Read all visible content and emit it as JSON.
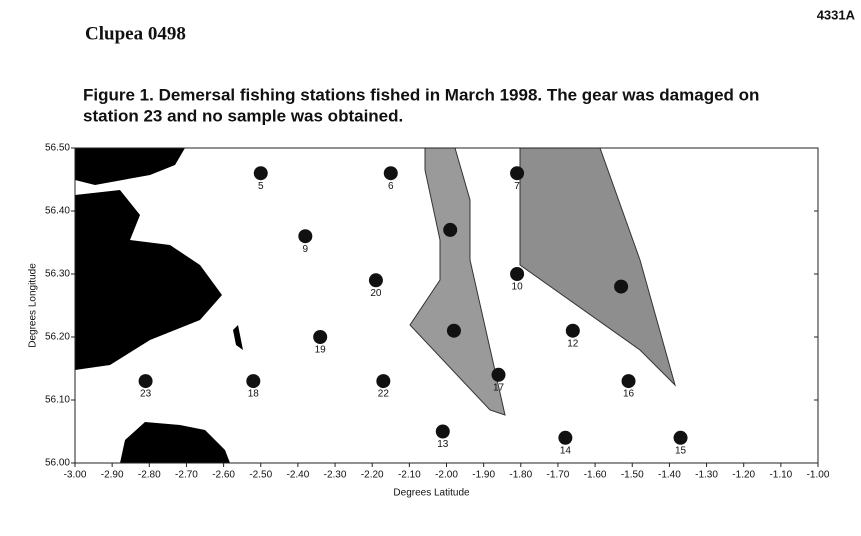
{
  "header": {
    "left": "Clupea 0498",
    "right": "4331A"
  },
  "chart_data": {
    "type": "scatter",
    "title": [
      "Figure 1. Demersal fishing stations fished in March 1998. The gear was damaged on",
      "station 23 and no sample was obtained."
    ],
    "x_label": "Degrees Latitude",
    "y_label": "Degrees Longitude",
    "x": [
      -2.5,
      -2.15,
      -1.81,
      -2.38,
      -1.99,
      -2.19,
      -1.81,
      -1.53,
      -2.34,
      -1.98,
      -1.66,
      -2.81,
      -2.52,
      -2.17,
      -1.86,
      -1.51,
      -2.01,
      -1.68,
      -1.37
    ],
    "values": [
      56.46,
      56.46,
      56.46,
      56.36,
      56.37,
      56.29,
      56.3,
      56.28,
      56.2,
      56.21,
      56.21,
      56.13,
      56.13,
      56.13,
      56.14,
      56.13,
      56.05,
      56.04,
      56.04
    ],
    "labels": [
      "5",
      "6",
      "7",
      "9",
      null,
      "20",
      "10",
      null,
      "19",
      null,
      "12",
      "23",
      "18",
      "22",
      "17",
      "16",
      "13",
      "14",
      "15"
    ],
    "color": "#111111",
    "xlim": [
      -3,
      -1
    ],
    "xticks": [
      {
        "value": -3,
        "label": "-3.00"
      },
      {
        "value": -2.9,
        "label": "-2.90"
      },
      {
        "value": -2.8,
        "label": "-2.80"
      },
      {
        "value": -2.7,
        "label": "-2.70"
      },
      {
        "value": -2.6,
        "label": "-2.60"
      },
      {
        "value": -2.5,
        "label": "-2.50"
      },
      {
        "value": -2.4,
        "label": "-2.40"
      },
      {
        "value": -2.3,
        "label": "-2.30"
      },
      {
        "value": -2.2,
        "label": "-2.20"
      },
      {
        "value": -2.1,
        "label": "-2.10"
      },
      {
        "value": -2,
        "label": "-2.00"
      },
      {
        "value": -1.9,
        "label": "-1.90"
      },
      {
        "value": -1.8,
        "label": "-1.80"
      },
      {
        "value": -1.7,
        "label": "-1.70"
      },
      {
        "value": -1.6,
        "label": "-1.60"
      },
      {
        "value": -1.5,
        "label": "-1.50"
      },
      {
        "value": -1.4,
        "label": "-1.40"
      },
      {
        "value": -1.3,
        "label": "-1.30"
      },
      {
        "value": -1.2,
        "label": "-1.20"
      },
      {
        "value": -1.1,
        "label": "-1.10"
      },
      {
        "value": -1,
        "label": "-1.00"
      }
    ],
    "ylim": [
      56,
      56.5
    ],
    "yticks": [
      {
        "value": 56,
        "label": "56.00"
      },
      {
        "value": 56.1,
        "label": "56.10"
      },
      {
        "value": 56.2,
        "label": "56.20"
      },
      {
        "value": 56.3,
        "label": "56.30"
      },
      {
        "value": 56.4,
        "label": "56.40"
      },
      {
        "value": 56.5,
        "label": "56.50"
      }
    ]
  }
}
